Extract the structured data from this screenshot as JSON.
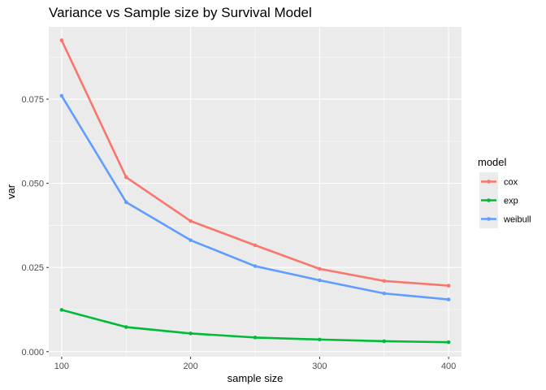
{
  "chart_data": {
    "type": "line",
    "title": "Variance vs Sample size by Survival Model",
    "xlabel": "sample size",
    "ylabel": "var",
    "x": [
      100,
      150,
      200,
      250,
      300,
      350,
      400
    ],
    "xticks": [
      100,
      200,
      300,
      400
    ],
    "yticks": [
      0.0,
      0.025,
      0.05,
      0.075
    ],
    "ytick_labels": [
      "0.000",
      "0.025",
      "0.050",
      "0.075"
    ],
    "xlim": [
      90,
      410
    ],
    "ylim": [
      -0.0015,
      0.0965
    ],
    "grid": true,
    "legend_title": "model",
    "legend_position": "right",
    "series": [
      {
        "name": "cox",
        "color": "#F8766D",
        "values": [
          0.0925,
          0.0518,
          0.0388,
          0.0316,
          0.0246,
          0.021,
          0.0196
        ]
      },
      {
        "name": "exp",
        "color": "#00BA38",
        "values": [
          0.0124,
          0.0073,
          0.0054,
          0.0042,
          0.0036,
          0.0031,
          0.0028
        ]
      },
      {
        "name": "weibull",
        "color": "#619CFF",
        "values": [
          0.076,
          0.0444,
          0.0331,
          0.0254,
          0.0212,
          0.0173,
          0.0155
        ]
      }
    ]
  }
}
